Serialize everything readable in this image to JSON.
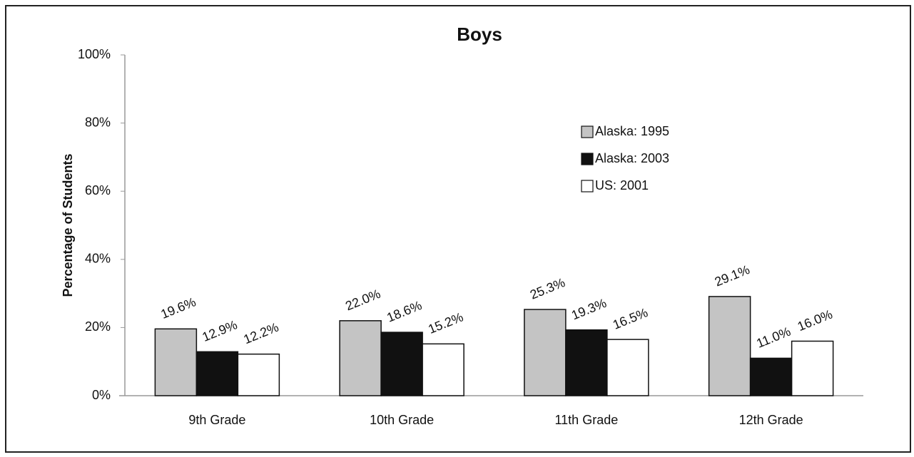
{
  "chart_data": {
    "type": "bar",
    "title": "Boys",
    "ylabel": "Percentage of Students",
    "categories": [
      "9th Grade",
      "10th Grade",
      "11th Grade",
      "12th Grade"
    ],
    "series": [
      {
        "name": "Alaska: 1995",
        "color": "#c4c4c4",
        "values": [
          19.6,
          22.0,
          25.3,
          29.1
        ],
        "value_labels": [
          "19.6%",
          "22.0%",
          "25.3%",
          "29.1%"
        ]
      },
      {
        "name": "Alaska: 2003",
        "color": "#111111",
        "values": [
          12.9,
          18.6,
          19.3,
          11.0
        ],
        "value_labels": [
          "12.9%",
          "18.6%",
          "19.3%",
          "11.0%"
        ]
      },
      {
        "name": "US: 2001",
        "color": "#ffffff",
        "values": [
          12.2,
          15.2,
          16.5,
          16.0
        ],
        "value_labels": [
          "12.2%",
          "15.2%",
          "16.5%",
          "16.0%"
        ]
      }
    ],
    "ylim": [
      0,
      100
    ],
    "yticks": [
      {
        "value": 0,
        "label": "0%"
      },
      {
        "value": 20,
        "label": "20%"
      },
      {
        "value": 40,
        "label": "40%"
      },
      {
        "value": 60,
        "label": "60%"
      },
      {
        "value": 80,
        "label": "80%"
      },
      {
        "value": 100,
        "label": "100%"
      }
    ],
    "grid": false,
    "legend": "upper right"
  }
}
